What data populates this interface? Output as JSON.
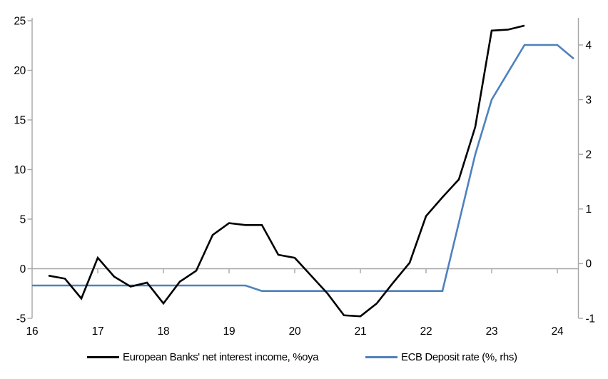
{
  "chart_data": {
    "type": "line",
    "title": "",
    "x_axis": {
      "tick_labels": [
        "16",
        "17",
        "18",
        "19",
        "20",
        "21",
        "22",
        "23",
        "24"
      ],
      "tick_values": [
        16,
        17,
        18,
        19,
        20,
        21,
        22,
        23,
        24
      ],
      "range": [
        16,
        24.32
      ],
      "ticks_on_zero_line": true
    },
    "left_axis": {
      "tick_labels": [
        "-5",
        "0",
        "5",
        "10",
        "15",
        "20",
        "25"
      ],
      "tick_values": [
        -5,
        0,
        5,
        10,
        15,
        20,
        25
      ],
      "range": [
        -5,
        25.3
      ],
      "zero_gridline": true
    },
    "right_axis": {
      "tick_labels": [
        "-1",
        "0",
        "1",
        "2",
        "3",
        "4"
      ],
      "tick_values": [
        -1,
        0,
        1,
        2,
        3,
        4
      ],
      "range": [
        -1,
        4.5
      ]
    },
    "grid": "zero-line-only",
    "legend_position": "bottom",
    "series": [
      {
        "name": "European Banks' net interest income, %oya",
        "axis": "left",
        "color": "#000000",
        "x": [
          16.25,
          16.5,
          16.75,
          17.0,
          17.25,
          17.5,
          17.75,
          18.0,
          18.25,
          18.5,
          18.75,
          19.0,
          19.25,
          19.5,
          19.75,
          20.0,
          20.25,
          20.5,
          20.75,
          21.0,
          21.25,
          21.5,
          21.75,
          22.0,
          22.25,
          22.5,
          22.75,
          23.0,
          23.25,
          23.5
        ],
        "values": [
          -0.7,
          -1.0,
          -3.0,
          1.1,
          -0.8,
          -1.8,
          -1.4,
          -3.5,
          -1.3,
          -0.2,
          3.4,
          4.6,
          4.4,
          4.4,
          1.4,
          1.1,
          -0.7,
          -2.5,
          -4.7,
          -4.8,
          -3.5,
          -1.4,
          0.6,
          5.3,
          7.2,
          9.0,
          14.3,
          24.0,
          24.1,
          24.5
        ]
      },
      {
        "name": "ECB Deposit rate (%, rhs)",
        "axis": "right",
        "color": "#4E81BD",
        "x": [
          16.0,
          16.25,
          16.5,
          16.75,
          17.0,
          17.25,
          17.5,
          17.75,
          18.0,
          18.25,
          18.5,
          18.75,
          19.0,
          19.25,
          19.5,
          19.75,
          20.0,
          20.25,
          20.5,
          20.75,
          21.0,
          21.25,
          21.5,
          21.75,
          22.0,
          22.25,
          22.5,
          22.75,
          23.0,
          23.25,
          23.5,
          23.75,
          24.0,
          24.25
        ],
        "values": [
          -0.4,
          -0.4,
          -0.4,
          -0.4,
          -0.4,
          -0.4,
          -0.4,
          -0.4,
          -0.4,
          -0.4,
          -0.4,
          -0.4,
          -0.4,
          -0.4,
          -0.5,
          -0.5,
          -0.5,
          -0.5,
          -0.5,
          -0.5,
          -0.5,
          -0.5,
          -0.5,
          -0.5,
          -0.5,
          -0.5,
          0.75,
          2.0,
          3.0,
          3.5,
          4.0,
          4.0,
          4.0,
          3.75
        ]
      }
    ]
  },
  "legend": {
    "items": [
      {
        "label": "European Banks' net interest income, %oya",
        "color": "#000000"
      },
      {
        "label": "ECB Deposit rate (%, rhs)",
        "color": "#4E81BD"
      }
    ]
  },
  "colors": {
    "background": "#FFFFFF",
    "axis": "#A6A6A6",
    "text": "#000000",
    "series_black": "#000000",
    "series_blue": "#4E81BD"
  }
}
